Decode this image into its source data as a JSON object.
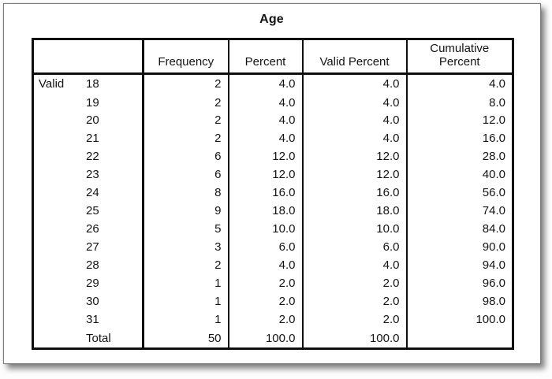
{
  "colors": {
    "table_border": "#0f0f0f",
    "text": "#141414",
    "page_background": "#ffffff",
    "page_edge": "#7d7d7d"
  },
  "chart_data": {
    "type": "table",
    "title": "Age",
    "header": {
      "stub": "",
      "frequency": "Frequency",
      "percent": "Percent",
      "valid_percent": "Valid Percent",
      "cumulative_percent": "Cumulative Percent"
    },
    "rows": [
      {
        "category": "Valid",
        "label": "18",
        "frequency": "2",
        "percent": "4.0",
        "valid_percent": "4.0",
        "cumulative_percent": "4.0"
      },
      {
        "category": "",
        "label": "19",
        "frequency": "2",
        "percent": "4.0",
        "valid_percent": "4.0",
        "cumulative_percent": "8.0"
      },
      {
        "category": "",
        "label": "20",
        "frequency": "2",
        "percent": "4.0",
        "valid_percent": "4.0",
        "cumulative_percent": "12.0"
      },
      {
        "category": "",
        "label": "21",
        "frequency": "2",
        "percent": "4.0",
        "valid_percent": "4.0",
        "cumulative_percent": "16.0"
      },
      {
        "category": "",
        "label": "22",
        "frequency": "6",
        "percent": "12.0",
        "valid_percent": "12.0",
        "cumulative_percent": "28.0"
      },
      {
        "category": "",
        "label": "23",
        "frequency": "6",
        "percent": "12.0",
        "valid_percent": "12.0",
        "cumulative_percent": "40.0"
      },
      {
        "category": "",
        "label": "24",
        "frequency": "8",
        "percent": "16.0",
        "valid_percent": "16.0",
        "cumulative_percent": "56.0"
      },
      {
        "category": "",
        "label": "25",
        "frequency": "9",
        "percent": "18.0",
        "valid_percent": "18.0",
        "cumulative_percent": "74.0"
      },
      {
        "category": "",
        "label": "26",
        "frequency": "5",
        "percent": "10.0",
        "valid_percent": "10.0",
        "cumulative_percent": "84.0"
      },
      {
        "category": "",
        "label": "27",
        "frequency": "3",
        "percent": "6.0",
        "valid_percent": "6.0",
        "cumulative_percent": "90.0"
      },
      {
        "category": "",
        "label": "28",
        "frequency": "2",
        "percent": "4.0",
        "valid_percent": "4.0",
        "cumulative_percent": "94.0"
      },
      {
        "category": "",
        "label": "29",
        "frequency": "1",
        "percent": "2.0",
        "valid_percent": "2.0",
        "cumulative_percent": "96.0"
      },
      {
        "category": "",
        "label": "30",
        "frequency": "1",
        "percent": "2.0",
        "valid_percent": "2.0",
        "cumulative_percent": "98.0"
      },
      {
        "category": "",
        "label": "31",
        "frequency": "1",
        "percent": "2.0",
        "valid_percent": "2.0",
        "cumulative_percent": "100.0"
      },
      {
        "category": "",
        "label": "Total",
        "frequency": "50",
        "percent": "100.0",
        "valid_percent": "100.0",
        "cumulative_percent": ""
      }
    ]
  }
}
